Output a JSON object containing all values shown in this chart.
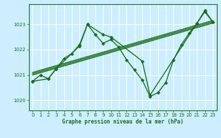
{
  "xlabel": "Graphe pression niveau de la mer (hPa)",
  "bg_color": "#cceeff",
  "grid_color": "#aadddd",
  "line_color": "#1a6e1a",
  "xlim": [
    -0.5,
    23.5
  ],
  "ylim": [
    1019.6,
    1023.8
  ],
  "yticks": [
    1020,
    1021,
    1022,
    1023
  ],
  "xticks": [
    0,
    1,
    2,
    3,
    4,
    5,
    6,
    7,
    8,
    9,
    10,
    11,
    12,
    13,
    14,
    15,
    16,
    17,
    18,
    19,
    20,
    21,
    22,
    23
  ],
  "series": [
    {
      "x": [
        0,
        1,
        2,
        3,
        4,
        5,
        6,
        7,
        8,
        9,
        10,
        11,
        12,
        13,
        14,
        15,
        16,
        17,
        18,
        19,
        20,
        21,
        22,
        23
      ],
      "y": [
        1020.75,
        1021.0,
        1020.85,
        1021.25,
        1021.65,
        1021.85,
        1022.2,
        1023.0,
        1022.6,
        1022.25,
        1022.4,
        1022.1,
        1021.6,
        1021.2,
        1020.8,
        1020.15,
        1020.3,
        1020.7,
        1021.6,
        1022.2,
        1022.65,
        1023.05,
        1023.5,
        1023.1
      ],
      "has_marker": true,
      "markersize": 2.5,
      "linewidth": 1.0
    },
    {
      "x": [
        0,
        2,
        3,
        6,
        7,
        9,
        10,
        14,
        15,
        21,
        22,
        23
      ],
      "y": [
        1020.75,
        1020.85,
        1021.25,
        1022.15,
        1023.0,
        1022.6,
        1022.5,
        1021.55,
        1020.2,
        1023.05,
        1023.55,
        1023.1
      ],
      "has_marker": true,
      "markersize": 2.5,
      "linewidth": 1.0
    },
    {
      "x": [
        0,
        23
      ],
      "y": [
        1021.0,
        1023.05
      ],
      "has_marker": false,
      "markersize": 0,
      "linewidth": 1.0
    },
    {
      "x": [
        0,
        23
      ],
      "y": [
        1021.05,
        1023.1
      ],
      "has_marker": false,
      "markersize": 0,
      "linewidth": 1.0
    },
    {
      "x": [
        0,
        23
      ],
      "y": [
        1021.1,
        1023.15
      ],
      "has_marker": false,
      "markersize": 0,
      "linewidth": 1.0
    }
  ]
}
